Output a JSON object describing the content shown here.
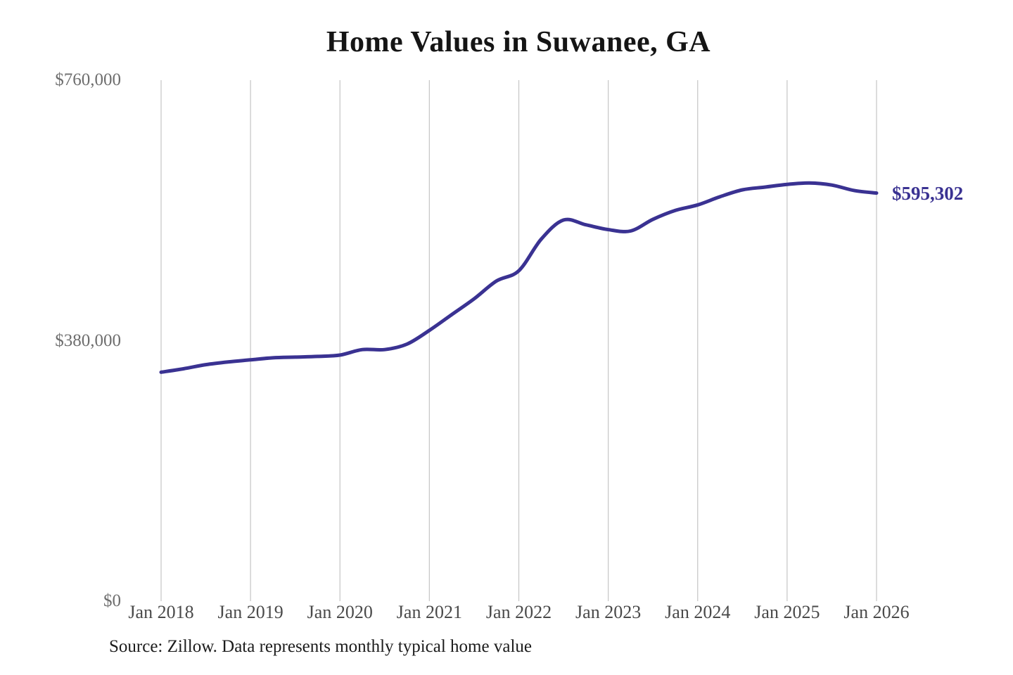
{
  "title": "Home Values in Suwanee, GA",
  "source_note": "Source: Zillow. Data represents monthly typical home value",
  "end_label": "$595,302",
  "colors": {
    "line": "#3a3292",
    "grid": "#c9c9c9",
    "title": "#151515",
    "y_label": "#6e6e6e",
    "x_label": "#4a4a4a",
    "source": "#1c1c1c",
    "background": "#ffffff"
  },
  "chart_data": {
    "type": "line",
    "title": "Home Values in Suwanee, GA",
    "xlabel": "",
    "ylabel": "",
    "ylim": [
      0,
      760000
    ],
    "grid": "vertical-only",
    "legend": "none",
    "x": [
      "Jan 2018",
      "Apr 2018",
      "Jul 2018",
      "Oct 2018",
      "Jan 2019",
      "Apr 2019",
      "Jul 2019",
      "Oct 2019",
      "Jan 2020",
      "Apr 2020",
      "Jul 2020",
      "Oct 2020",
      "Jan 2021",
      "Apr 2021",
      "Jul 2021",
      "Oct 2021",
      "Jan 2022",
      "Apr 2022",
      "Jul 2022",
      "Oct 2022",
      "Jan 2023",
      "Apr 2023",
      "Jul 2023",
      "Oct 2023",
      "Jan 2024",
      "Apr 2024",
      "Jul 2024",
      "Oct 2024",
      "Jan 2025",
      "Apr 2025",
      "Jul 2025",
      "Oct 2025",
      "Jan 2026"
    ],
    "series": [
      {
        "name": "Monthly typical home value",
        "values": [
          334000,
          339000,
          345000,
          349000,
          352000,
          355000,
          356000,
          357000,
          359000,
          367000,
          367000,
          375000,
          395000,
          418000,
          441000,
          467000,
          482000,
          528000,
          556000,
          549000,
          542000,
          540000,
          557000,
          570000,
          578000,
          590000,
          600000,
          604000,
          608000,
          610000,
          607000,
          599000,
          595302
        ]
      }
    ],
    "y_ticks": [
      {
        "label": "$0",
        "value": 0
      },
      {
        "label": "$380,000",
        "value": 380000
      },
      {
        "label": "$760,000",
        "value": 760000
      }
    ],
    "x_ticks": [
      {
        "label": "Jan 2018",
        "index": 0
      },
      {
        "label": "Jan 2019",
        "index": 4
      },
      {
        "label": "Jan 2020",
        "index": 8
      },
      {
        "label": "Jan 2021",
        "index": 12
      },
      {
        "label": "Jan 2022",
        "index": 16
      },
      {
        "label": "Jan 2023",
        "index": 20
      },
      {
        "label": "Jan 2024",
        "index": 24
      },
      {
        "label": "Jan 2025",
        "index": 28
      },
      {
        "label": "Jan 2026",
        "index": 32
      }
    ],
    "end_annotation": {
      "label": "$595,302",
      "value": 595302
    }
  }
}
